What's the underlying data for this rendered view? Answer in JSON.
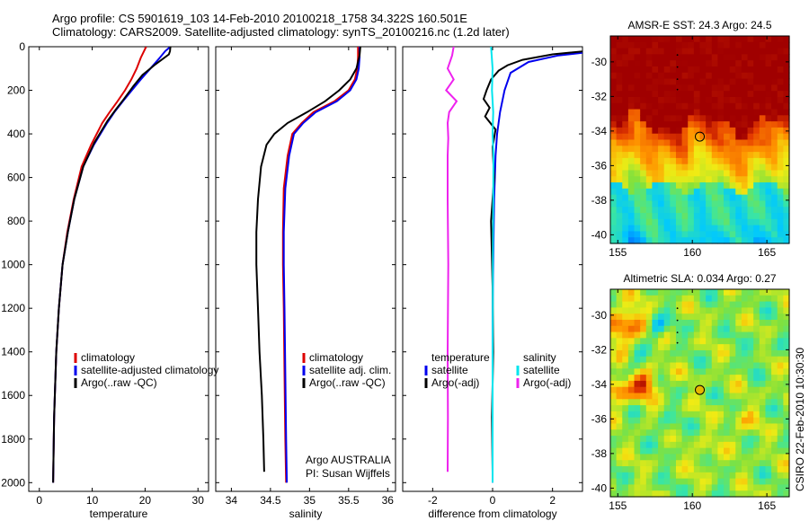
{
  "header": {
    "line1": "Argo profile: CS 5901619_103 14-Feb-2010 20100218_1758 34.322S 160.501E",
    "line2": "Climatology: CARS2009. Satellite-adjusted climatology: synTS_20100216.nc (1.2d later)"
  },
  "credit": "CSIRO 22-Feb-2010 10:30:30",
  "colors": {
    "red": "#dd0000",
    "blue": "#0000ee",
    "black": "#000000",
    "magenta": "#ee22ee",
    "cyan": "#00e5ee"
  },
  "chart_data": [
    {
      "type": "line",
      "name": "temperature-panel",
      "xlabel": "temperature",
      "ylabel": "",
      "xlim": [
        -2,
        32
      ],
      "ylim": [
        2040,
        0
      ],
      "y_reversed": true,
      "xticks": [
        0,
        10,
        20,
        30
      ],
      "yticks": [
        0,
        200,
        400,
        600,
        800,
        1000,
        1200,
        1400,
        1600,
        1800,
        2000
      ],
      "legend": [
        "climatology",
        "satellite-adjusted climatology",
        "Argo(..raw -QC)"
      ],
      "series": [
        {
          "name": "climatology",
          "color": "red",
          "x": [
            20.2,
            19.8,
            19.2,
            18.4,
            17.4,
            16.2,
            14.8,
            13.3,
            11.9,
            9.8,
            8.0,
            6.5,
            5.3,
            4.4,
            3.7,
            3.2,
            2.8,
            2.6
          ],
          "y": [
            0,
            20,
            50,
            100,
            150,
            200,
            250,
            300,
            350,
            450,
            550,
            700,
            850,
            1000,
            1200,
            1400,
            1700,
            2000
          ]
        },
        {
          "name": "satellite-adjusted climatology",
          "color": "blue",
          "x": [
            24.8,
            23.8,
            22.8,
            21.0,
            19.2,
            17.5,
            15.8,
            14.2,
            12.8,
            10.3,
            8.3,
            6.6,
            5.4,
            4.4,
            3.7,
            3.2,
            2.8,
            2.6
          ],
          "y": [
            0,
            20,
            50,
            100,
            150,
            200,
            250,
            300,
            350,
            450,
            550,
            700,
            850,
            1000,
            1200,
            1400,
            1700,
            2000
          ]
        },
        {
          "name": "Argo(..raw -QC)",
          "color": "black",
          "x": [
            24.8,
            24.7,
            24.5,
            22.0,
            19.5,
            17.8,
            16.0,
            14.4,
            12.9,
            10.4,
            8.3,
            6.6,
            5.4,
            4.4,
            3.7,
            3.2,
            2.8,
            2.6
          ],
          "y": [
            0,
            20,
            35,
            80,
            130,
            180,
            240,
            290,
            340,
            440,
            550,
            700,
            850,
            1000,
            1200,
            1400,
            1700,
            2000
          ]
        }
      ]
    },
    {
      "type": "line",
      "name": "salinity-panel",
      "xlabel": "salinity",
      "ylabel": "",
      "xlim": [
        33.8,
        36.1
      ],
      "ylim": [
        2040,
        0
      ],
      "y_reversed": true,
      "xticks": [
        34,
        34.5,
        35,
        35.5,
        36
      ],
      "legend": [
        "climatology",
        "satellite adj. clim.",
        "Argo(..raw -QC)"
      ],
      "annotation": [
        "Argo AUSTRALIA",
        "PI: Susan Wijffels"
      ],
      "series": [
        {
          "name": "climatology",
          "color": "red",
          "x": [
            35.62,
            35.62,
            35.61,
            35.58,
            35.5,
            35.32,
            35.05,
            34.9,
            34.78,
            34.72,
            34.67,
            34.66,
            34.66,
            34.67,
            34.68,
            34.69,
            34.7
          ],
          "y": [
            0,
            50,
            100,
            150,
            200,
            250,
            300,
            350,
            400,
            500,
            650,
            850,
            1000,
            1200,
            1500,
            1800,
            2000
          ]
        },
        {
          "name": "satellite adj. clim.",
          "color": "blue",
          "x": [
            35.64,
            35.64,
            35.63,
            35.6,
            35.52,
            35.35,
            35.08,
            34.92,
            34.8,
            34.74,
            34.69,
            34.67,
            34.67,
            34.68,
            34.69,
            34.7,
            34.71
          ],
          "y": [
            0,
            50,
            100,
            150,
            200,
            250,
            300,
            350,
            400,
            500,
            650,
            850,
            1000,
            1200,
            1500,
            1800,
            2000
          ]
        },
        {
          "name": "Argo(..raw -QC)",
          "color": "black",
          "x": [
            35.65,
            35.64,
            35.6,
            35.52,
            35.38,
            35.2,
            34.97,
            34.72,
            34.55,
            34.45,
            34.38,
            34.34,
            34.32,
            34.32,
            34.34,
            34.36,
            34.39,
            34.41,
            34.42
          ],
          "y": [
            0,
            40,
            100,
            150,
            200,
            250,
            300,
            350,
            400,
            450,
            550,
            700,
            850,
            1000,
            1200,
            1400,
            1600,
            1800,
            1950
          ]
        }
      ]
    },
    {
      "type": "line",
      "name": "difference-panel",
      "xlabel": "difference from climatology",
      "ylabel": "",
      "xlim": [
        -3,
        3
      ],
      "ylim": [
        2040,
        0
      ],
      "y_reversed": true,
      "xticks": [
        -2,
        0,
        2
      ],
      "legend_titles": [
        "temperature",
        "salinity"
      ],
      "legend": [
        "satellite",
        "Argo(-adj)",
        "satellite",
        "Argo(-adj)"
      ],
      "series": [
        {
          "name": "temperature satellite",
          "color": "blue",
          "x": [
            4.6,
            3.5,
            2.2,
            1.2,
            0.6,
            0.4,
            0.25,
            0.15,
            0.1,
            0.05,
            0.03,
            0.0,
            0.0,
            0.0
          ],
          "y": [
            0,
            20,
            40,
            70,
            120,
            200,
            300,
            400,
            500,
            700,
            900,
            1200,
            1600,
            2000
          ]
        },
        {
          "name": "temperature Argo(-adj)",
          "color": "black",
          "x": [
            4.6,
            2.0,
            1.0,
            0.5,
            0.2,
            -0.05,
            -0.2,
            -0.3,
            -0.1,
            -0.25,
            0.1,
            0.0,
            0.05,
            -0.05,
            0.0,
            0.02,
            -0.02,
            0.0
          ],
          "y": [
            0,
            35,
            60,
            85,
            110,
            150,
            200,
            240,
            280,
            320,
            380,
            460,
            600,
            800,
            1100,
            1400,
            1700,
            1950
          ]
        },
        {
          "name": "salinity satellite",
          "color": "cyan",
          "x": [
            -0.05,
            0.0,
            -0.02,
            0.02,
            0.0,
            0.03,
            0.02,
            0.01,
            0.0,
            0.0
          ],
          "y": [
            0,
            100,
            200,
            300,
            400,
            500,
            700,
            1000,
            1500,
            2000
          ]
        },
        {
          "name": "salinity Argo(-adj)",
          "color": "magenta",
          "x": [
            -1.3,
            -1.35,
            -1.5,
            -1.3,
            -1.55,
            -1.2,
            -1.45,
            -1.5,
            -1.48,
            -1.5,
            -1.5,
            -1.48,
            -1.5,
            -1.49,
            -1.5
          ],
          "y": [
            0,
            40,
            100,
            150,
            200,
            250,
            300,
            350,
            420,
            500,
            700,
            1000,
            1400,
            1700,
            1950
          ]
        }
      ]
    },
    {
      "type": "heatmap",
      "name": "sst-map",
      "title": "AMSR-E SST: 24.3 Argo: 24.5",
      "xlim": [
        154.5,
        166.5
      ],
      "ylim": [
        -40.5,
        -28.5
      ],
      "xticks": [
        155,
        160,
        165
      ],
      "yticks": [
        -30,
        -32,
        -34,
        -36,
        -38,
        -40
      ],
      "marker": {
        "lon": 160.501,
        "lat": -34.322
      }
    },
    {
      "type": "heatmap",
      "name": "sla-map",
      "title": "Altimetric SLA: 0.034 Argo: 0.27",
      "xlim": [
        154.5,
        166.5
      ],
      "ylim": [
        -40.5,
        -28.5
      ],
      "xticks": [
        155,
        160,
        165
      ],
      "yticks": [
        -30,
        -32,
        -34,
        -36,
        -38,
        -40
      ],
      "marker": {
        "lon": 160.501,
        "lat": -34.322
      }
    }
  ]
}
